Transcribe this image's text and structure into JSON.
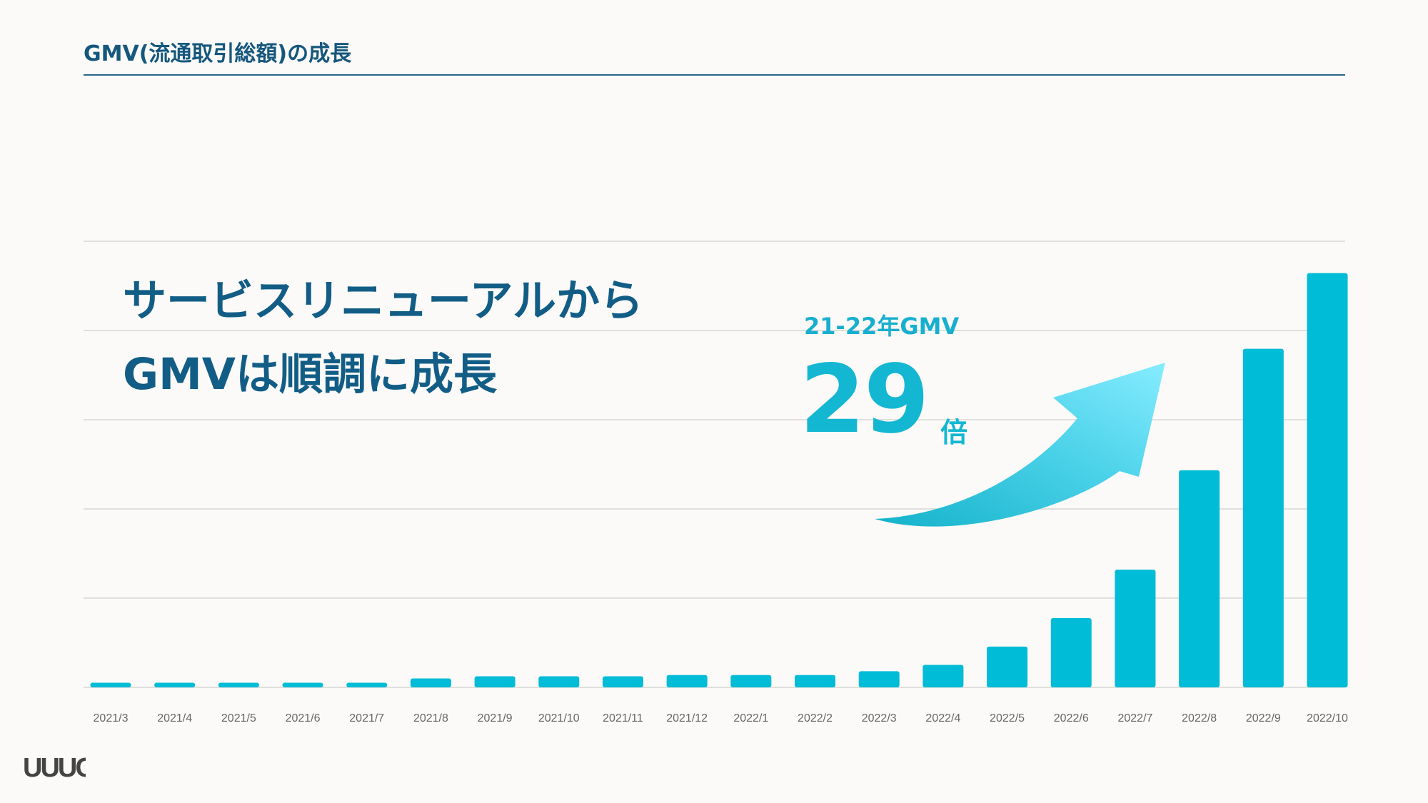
{
  "slide": {
    "title": "GMV(流通取引総額)の成長",
    "headline_line1": "サービスリニューアルから",
    "headline_line2": "GMVは順調に成長",
    "callout_label": "21-22年GMV",
    "callout_value": "29",
    "callout_unit": "倍",
    "logo_text": "UUUO"
  },
  "colors": {
    "bar": "#00bcd6",
    "title": "#15577d",
    "accent": "#14b7d2",
    "gridline": "#d6d6d6",
    "background": "#fbfaf8"
  },
  "chart_data": {
    "type": "bar",
    "categories": [
      "2021/3",
      "2021/4",
      "2021/5",
      "2021/6",
      "2021/7",
      "2021/8",
      "2021/9",
      "2021/10",
      "2021/11",
      "2021/12",
      "2022/1",
      "2022/2",
      "2022/3",
      "2022/4",
      "2022/5",
      "2022/6",
      "2022/7",
      "2022/8",
      "2022/9",
      "2022/10"
    ],
    "values": [
      1.1,
      1.1,
      1.1,
      1.1,
      1.1,
      2.1,
      2.6,
      2.6,
      2.6,
      2.9,
      2.9,
      2.9,
      3.8,
      5.3,
      9.6,
      16.3,
      27.7,
      51.1,
      79.7,
      97.5
    ],
    "ylim": [
      0,
      105
    ],
    "grid": true,
    "title": "",
    "xlabel": "",
    "ylabel": ""
  }
}
